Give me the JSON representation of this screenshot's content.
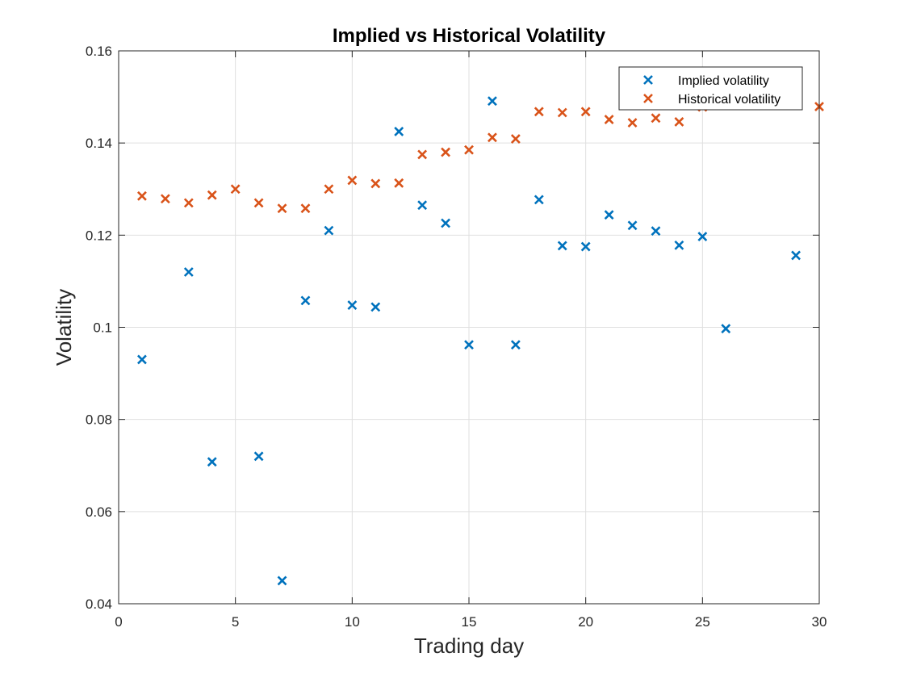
{
  "chart_data": {
    "type": "scatter",
    "title": "Implied vs Historical Volatility",
    "xlabel": "Trading day",
    "ylabel": "Volatility",
    "xlim": [
      0,
      30
    ],
    "ylim": [
      0.04,
      0.16
    ],
    "xticks": [
      0,
      5,
      10,
      15,
      20,
      25,
      30
    ],
    "yticks": [
      0.04,
      0.06,
      0.08,
      0.1,
      0.12,
      0.14,
      0.16
    ],
    "xtick_labels": [
      "0",
      "5",
      "10",
      "15",
      "20",
      "25",
      "30"
    ],
    "ytick_labels": [
      "0.04",
      "0.06",
      "0.08",
      "0.1",
      "0.12",
      "0.14",
      "0.16"
    ],
    "grid": true,
    "legend_position": "top-right",
    "marker": "x",
    "series": [
      {
        "name": "Implied volatility",
        "color": "#0072BD",
        "points": [
          [
            1,
            0.093
          ],
          [
            3,
            0.112
          ],
          [
            4,
            0.0708
          ],
          [
            6,
            0.072
          ],
          [
            7,
            0.045
          ],
          [
            8,
            0.1058
          ],
          [
            9,
            0.121
          ],
          [
            10,
            0.1048
          ],
          [
            11,
            0.1044
          ],
          [
            12,
            0.1425
          ],
          [
            13,
            0.1265
          ],
          [
            14,
            0.1226
          ],
          [
            15,
            0.0962
          ],
          [
            16,
            0.1491
          ],
          [
            17,
            0.0962
          ],
          [
            18,
            0.1277
          ],
          [
            19,
            0.1177
          ],
          [
            20,
            0.1175
          ],
          [
            21,
            0.1244
          ],
          [
            22,
            0.1221
          ],
          [
            23,
            0.1209
          ],
          [
            24,
            0.1178
          ],
          [
            25,
            0.1197
          ],
          [
            26,
            0.0997
          ],
          [
            29,
            0.1156
          ]
        ]
      },
      {
        "name": "Historical volatility",
        "color": "#D95319",
        "points": [
          [
            1,
            0.1285
          ],
          [
            2,
            0.1279
          ],
          [
            3,
            0.127
          ],
          [
            4,
            0.1287
          ],
          [
            5,
            0.13
          ],
          [
            6,
            0.127
          ],
          [
            7,
            0.1258
          ],
          [
            8,
            0.1258
          ],
          [
            9,
            0.13
          ],
          [
            10,
            0.1319
          ],
          [
            11,
            0.1312
          ],
          [
            12,
            0.1313
          ],
          [
            13,
            0.1375
          ],
          [
            14,
            0.138
          ],
          [
            15,
            0.1385
          ],
          [
            16,
            0.1412
          ],
          [
            17,
            0.1409
          ],
          [
            18,
            0.1468
          ],
          [
            19,
            0.1466
          ],
          [
            20,
            0.1468
          ],
          [
            21,
            0.1451
          ],
          [
            22,
            0.1444
          ],
          [
            23,
            0.1454
          ],
          [
            24,
            0.1446
          ],
          [
            25,
            0.1478
          ],
          [
            30,
            0.1479
          ]
        ]
      }
    ]
  }
}
